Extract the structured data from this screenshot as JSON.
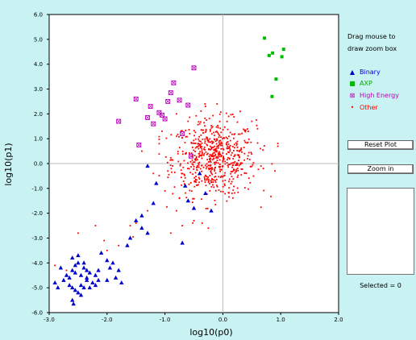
{
  "panel": {
    "hint_line1": "Drag mouse to",
    "hint_line2": "draw zoom box",
    "reset_button": "Reset Plot",
    "zoom_button": "Zoom in",
    "selected_label": "Selected = 0"
  },
  "chart_data": {
    "type": "scatter",
    "title": "",
    "xlabel": "log10(p0)",
    "ylabel": "log10(p1)",
    "xlim": [
      -3.0,
      2.0
    ],
    "ylim": [
      -6.0,
      6.0
    ],
    "xticks": [
      "-3.0",
      "-2.0",
      "-1.0",
      "0.0",
      "1.0",
      "2.0"
    ],
    "yticks": [
      "6.0",
      "5.0",
      "4.0",
      "3.0",
      "2.0",
      "1.0",
      "0.0",
      "-1.0",
      "-2.0",
      "-3.0",
      "-4.0",
      "-5.0",
      "-6.0"
    ],
    "grid_zero_lines": true,
    "legend_placement": "right",
    "series": [
      {
        "name": "Binary",
        "color": "#0000cc",
        "marker": "triangle",
        "points": [
          [
            -2.6,
            -4.3
          ],
          [
            -2.55,
            -4.1
          ],
          [
            -2.5,
            -4.0
          ],
          [
            -2.45,
            -4.5
          ],
          [
            -2.4,
            -4.2
          ],
          [
            -2.35,
            -4.6
          ],
          [
            -2.3,
            -4.4
          ],
          [
            -2.25,
            -4.8
          ],
          [
            -2.2,
            -4.5
          ],
          [
            -2.15,
            -4.7
          ],
          [
            -2.1,
            -3.6
          ],
          [
            -2.0,
            -3.9
          ],
          [
            -1.95,
            -4.2
          ],
          [
            -1.9,
            -4.0
          ],
          [
            -1.85,
            -4.6
          ],
          [
            -1.8,
            -4.3
          ],
          [
            -2.65,
            -4.9
          ],
          [
            -2.6,
            -5.0
          ],
          [
            -2.55,
            -5.1
          ],
          [
            -2.5,
            -5.2
          ],
          [
            -2.45,
            -4.9
          ],
          [
            -2.4,
            -5.0
          ],
          [
            -2.35,
            -4.7
          ],
          [
            -2.3,
            -5.0
          ],
          [
            -2.6,
            -5.5
          ],
          [
            -2.58,
            -5.65
          ],
          [
            -2.7,
            -4.5
          ],
          [
            -2.75,
            -4.7
          ],
          [
            -2.8,
            -4.2
          ],
          [
            -2.85,
            -5.0
          ],
          [
            -2.9,
            -4.8
          ],
          [
            -2.5,
            -3.7
          ],
          [
            -2.6,
            -3.8
          ],
          [
            -2.0,
            -4.7
          ],
          [
            -1.75,
            -4.8
          ],
          [
            -1.65,
            -3.3
          ],
          [
            -1.6,
            -3.0
          ],
          [
            -1.5,
            -2.3
          ],
          [
            -1.4,
            -2.1
          ],
          [
            -1.2,
            -1.6
          ],
          [
            -1.15,
            -0.8
          ],
          [
            -1.3,
            -0.1
          ],
          [
            -1.3,
            -2.8
          ],
          [
            -0.7,
            -3.2
          ],
          [
            -0.5,
            -1.8
          ],
          [
            -0.6,
            -1.5
          ],
          [
            -0.3,
            -1.2
          ],
          [
            -0.2,
            -1.9
          ],
          [
            -2.4,
            -4.0
          ],
          [
            -2.2,
            -4.9
          ],
          [
            -2.45,
            -5.3
          ],
          [
            -2.55,
            -4.4
          ],
          [
            -2.65,
            -4.6
          ],
          [
            -2.15,
            -4.3
          ],
          [
            -1.4,
            -2.6
          ],
          [
            -2.35,
            -4.3
          ],
          [
            -0.65,
            -0.9
          ],
          [
            -0.4,
            -0.4
          ]
        ]
      },
      {
        "name": "AXP",
        "color": "#00bb00",
        "marker": "square",
        "points": [
          [
            0.72,
            5.05
          ],
          [
            0.8,
            4.35
          ],
          [
            0.86,
            4.45
          ],
          [
            0.92,
            3.4
          ],
          [
            1.02,
            4.3
          ],
          [
            1.05,
            4.6
          ],
          [
            0.85,
            2.7
          ]
        ]
      },
      {
        "name": "High Energy",
        "color": "#bb00bb",
        "marker": "boxed-x",
        "points": [
          [
            -1.8,
            1.7
          ],
          [
            -1.5,
            2.6
          ],
          [
            -1.45,
            0.75
          ],
          [
            -1.3,
            1.85
          ],
          [
            -1.25,
            2.3
          ],
          [
            -1.2,
            1.6
          ],
          [
            -1.05,
            1.95
          ],
          [
            -0.95,
            2.5
          ],
          [
            -0.9,
            2.85
          ],
          [
            -0.85,
            3.25
          ],
          [
            -0.75,
            2.55
          ],
          [
            -0.6,
            2.35
          ],
          [
            -0.5,
            3.85
          ],
          [
            -1.1,
            2.05
          ],
          [
            -1.0,
            1.8
          ],
          [
            -0.7,
            1.2
          ],
          [
            -0.55,
            0.3
          ]
        ]
      },
      {
        "name": "Other",
        "color": "#ff0000",
        "marker": "dot",
        "approximate_count": 620,
        "cluster_center": [
          -0.15,
          0.2
        ],
        "cluster_spread": [
          0.4,
          0.85
        ],
        "extra_points": [
          [
            -2.5,
            -2.8
          ],
          [
            -2.2,
            -2.5
          ],
          [
            -2.0,
            -3.5
          ],
          [
            -1.8,
            -3.3
          ],
          [
            -2.9,
            -4.1
          ],
          [
            -2.7,
            -4.3
          ],
          [
            -1.6,
            -2.5
          ],
          [
            -1.3,
            -1.9
          ],
          [
            -1.5,
            -2.4
          ],
          [
            -1.0,
            -1.1
          ],
          [
            -0.8,
            -1.9
          ],
          [
            -0.9,
            -2.8
          ],
          [
            -0.7,
            -2.5
          ],
          [
            -1.2,
            -0.4
          ],
          [
            -1.4,
            0.5
          ],
          [
            -1.05,
            1.3
          ],
          [
            -0.8,
            2.0
          ],
          [
            -0.6,
            1.7
          ],
          [
            -0.4,
            1.6
          ],
          [
            0.3,
            2.1
          ],
          [
            0.5,
            1.7
          ],
          [
            0.6,
            1.4
          ],
          [
            0.7,
            -0.2
          ],
          [
            0.9,
            -0.3
          ],
          [
            0.95,
            0.7
          ],
          [
            0.65,
            0.6
          ],
          [
            -2.05,
            -3.1
          ],
          [
            -1.55,
            -2.95
          ],
          [
            -0.95,
            -0.3
          ],
          [
            -1.1,
            0.8
          ],
          [
            -0.5,
            -2.3
          ],
          [
            -0.25,
            -2.6
          ],
          [
            -0.75,
            -1.4
          ],
          [
            -0.1,
            2.4
          ],
          [
            0.1,
            1.9
          ],
          [
            -0.3,
            2.3
          ]
        ]
      }
    ]
  }
}
